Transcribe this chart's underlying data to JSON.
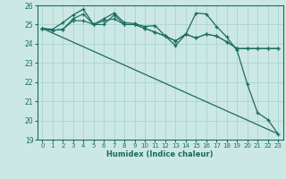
{
  "xlabel": "Humidex (Indice chaleur)",
  "ylabel": "",
  "bg_color": "#cce8e4",
  "grid_color": "#aad4cf",
  "line_color": "#1a6b60",
  "xlim": [
    -0.5,
    23.5
  ],
  "ylim": [
    19,
    26
  ],
  "xticks": [
    0,
    1,
    2,
    3,
    4,
    5,
    6,
    7,
    8,
    9,
    10,
    11,
    12,
    13,
    14,
    15,
    16,
    17,
    18,
    19,
    20,
    21,
    22,
    23
  ],
  "yticks": [
    19,
    20,
    21,
    22,
    23,
    24,
    25,
    26
  ],
  "line1_x": [
    0,
    1,
    2,
    3,
    4,
    5,
    6,
    7,
    8,
    9,
    10,
    11,
    12,
    13,
    14,
    15,
    16,
    17,
    18,
    19,
    20,
    21,
    22,
    23
  ],
  "line1_y": [
    24.8,
    24.7,
    24.75,
    25.2,
    25.2,
    25.0,
    25.0,
    25.5,
    25.0,
    25.0,
    24.8,
    24.6,
    24.4,
    24.15,
    24.5,
    24.3,
    24.5,
    24.4,
    24.1,
    23.75,
    23.75,
    23.75,
    23.75,
    23.75
  ],
  "line2_x": [
    0,
    1,
    2,
    3,
    4,
    5,
    6,
    7,
    8,
    9,
    10,
    11,
    12,
    13,
    14,
    15,
    16,
    17,
    18,
    19,
    20,
    21,
    22,
    23
  ],
  "line2_y": [
    24.8,
    24.7,
    24.75,
    25.3,
    25.55,
    25.0,
    25.2,
    25.3,
    25.0,
    25.0,
    24.8,
    24.6,
    24.4,
    24.15,
    24.5,
    24.3,
    24.5,
    24.4,
    24.1,
    23.75,
    23.75,
    23.75,
    23.75,
    23.75
  ],
  "line3_x": [
    0,
    1,
    2,
    3,
    4,
    5,
    6,
    7,
    8,
    9,
    10,
    11,
    12,
    13,
    14,
    15,
    16,
    17,
    18,
    19,
    20,
    21,
    22,
    23
  ],
  "line3_y": [
    24.8,
    24.75,
    25.1,
    25.5,
    25.8,
    25.0,
    25.3,
    25.6,
    25.1,
    25.05,
    24.9,
    24.95,
    24.4,
    23.9,
    24.5,
    25.6,
    25.55,
    24.9,
    24.35,
    23.65,
    21.9,
    20.4,
    20.05,
    19.3
  ],
  "line4_x": [
    0,
    23
  ],
  "line4_y": [
    24.8,
    19.3
  ]
}
